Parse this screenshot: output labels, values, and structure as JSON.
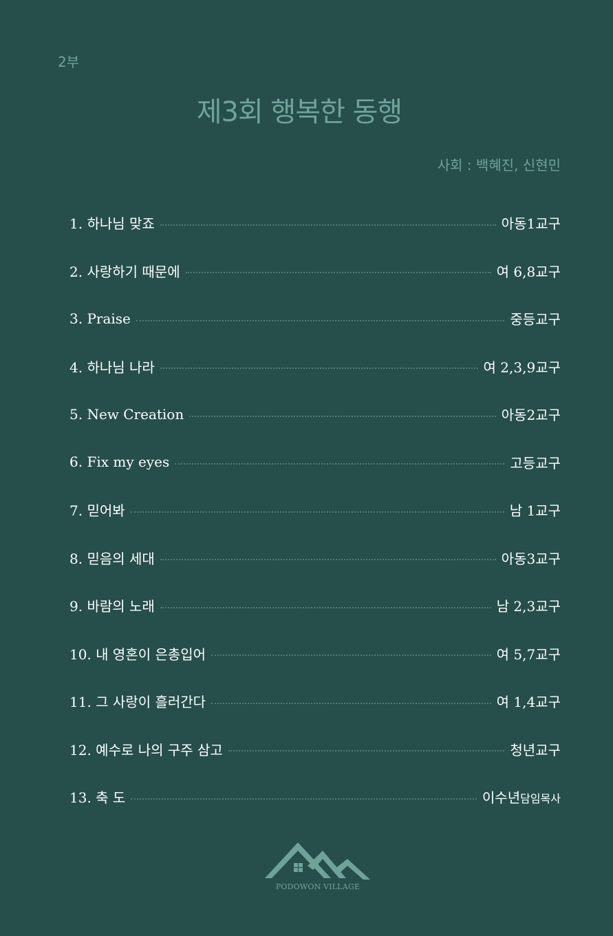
{
  "header": {
    "part": "2부",
    "title": "제3회  행복한 동행",
    "mc": "사회 : 백혜진, 신현민"
  },
  "program": [
    {
      "song": "1. 하나님 맞죠",
      "performer": "아동1교구"
    },
    {
      "song": "2. 사랑하기 때문에",
      "performer": "여 6,8교구"
    },
    {
      "song": "3. Praise",
      "performer": "중등교구"
    },
    {
      "song": "4. 하나님 나라",
      "performer": "여 2,3,9교구"
    },
    {
      "song": "5. New Creation",
      "performer": "아동2교구"
    },
    {
      "song": "6. Fix my eyes",
      "performer": "고등교구"
    },
    {
      "song": "7. 믿어봐",
      "performer": "남 1교구"
    },
    {
      "song": "8. 믿음의 세대",
      "performer": "아동3교구"
    },
    {
      "song": "9. 바람의 노래",
      "performer": "남 2,3교구"
    },
    {
      "song": "10. 내 영혼이 은총입어",
      "performer": "여 5,7교구"
    },
    {
      "song": "11. 그 사랑이 흘러간다",
      "performer": "여 1,4교구"
    },
    {
      "song": "12. 예수로 나의 구주 삼고",
      "performer": "청년교구"
    },
    {
      "song": "13. 축 도",
      "performer": "이수년",
      "performer_title": "담임목사"
    }
  ],
  "logo": {
    "text": "PODOWON VILLAGE",
    "color": "#6ea497"
  },
  "colors": {
    "background": "#264e4a",
    "accent": "#6ea497",
    "text": "#ffffff"
  }
}
